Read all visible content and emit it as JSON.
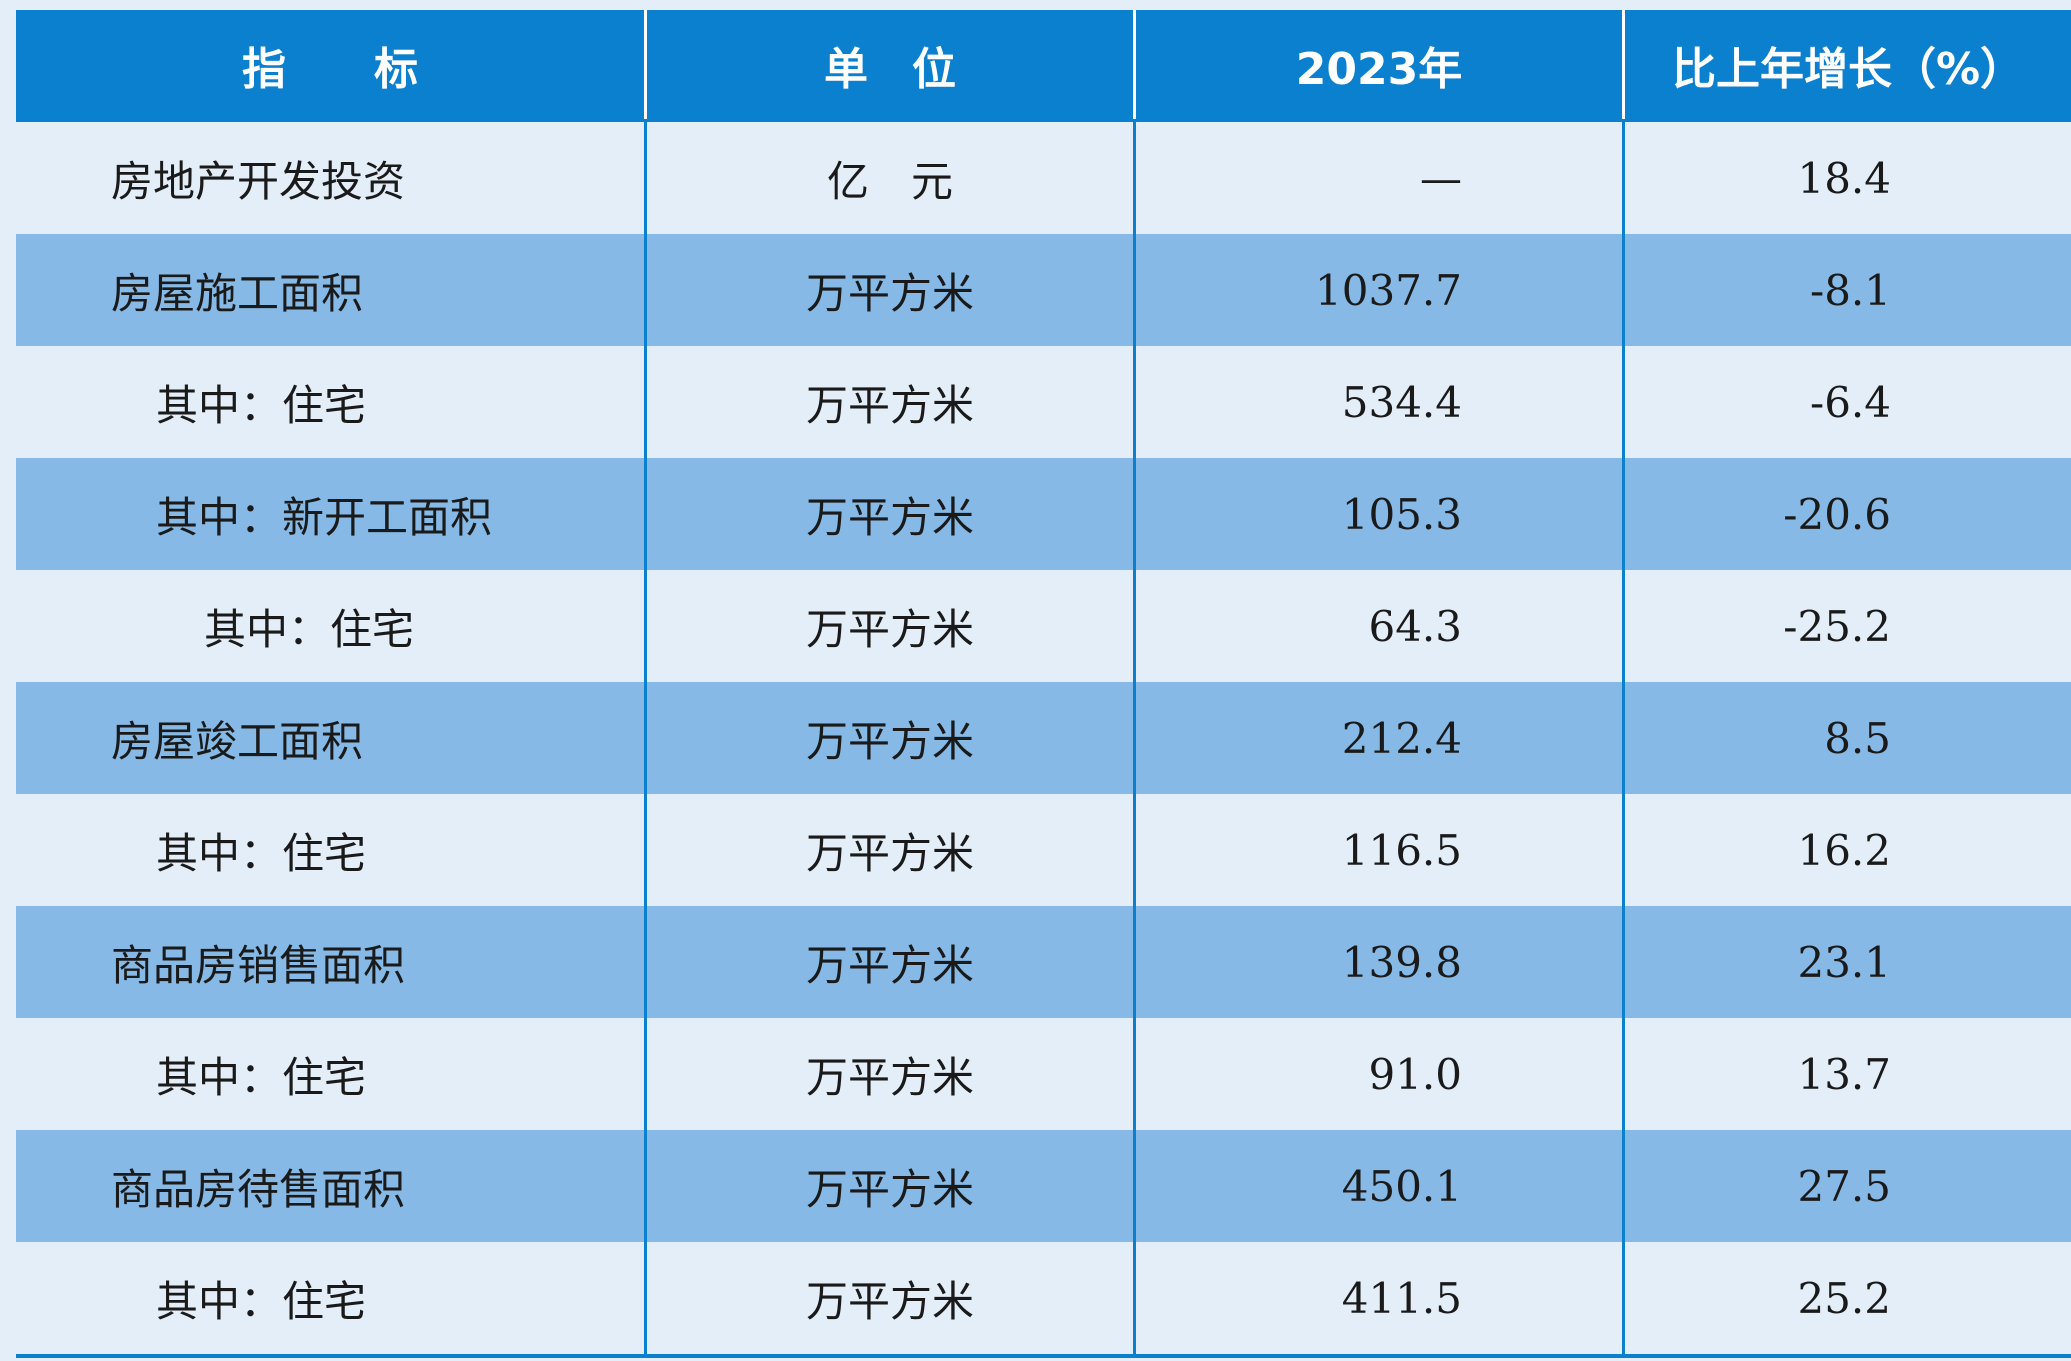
{
  "table": {
    "headers": [
      "指　　标",
      "单　位",
      "2023年",
      "比上年增长（%）"
    ],
    "rows": [
      {
        "indicator": "房地产开发投资",
        "unit": "亿　元",
        "value_2023": "—",
        "growth": "18.4",
        "indent": 0
      },
      {
        "indicator": "房屋施工面积",
        "unit": "万平方米",
        "value_2023": "1037.7",
        "growth": "-8.1",
        "indent": 0
      },
      {
        "indicator": "其中：住宅",
        "unit": "万平方米",
        "value_2023": "534.4",
        "growth": "-6.4",
        "indent": 1
      },
      {
        "indicator": "其中：新开工面积",
        "unit": "万平方米",
        "value_2023": "105.3",
        "growth": "-20.6",
        "indent": 1
      },
      {
        "indicator": "其中：住宅",
        "unit": "万平方米",
        "value_2023": "64.3",
        "growth": "-25.2",
        "indent": 2
      },
      {
        "indicator": "房屋竣工面积",
        "unit": "万平方米",
        "value_2023": "212.4",
        "growth": "8.5",
        "indent": 0
      },
      {
        "indicator": "其中：住宅",
        "unit": "万平方米",
        "value_2023": "116.5",
        "growth": "16.2",
        "indent": 1
      },
      {
        "indicator": "商品房销售面积",
        "unit": "万平方米",
        "value_2023": "139.8",
        "growth": "23.1",
        "indent": 0
      },
      {
        "indicator": "其中：住宅",
        "unit": "万平方米",
        "value_2023": "91.0",
        "growth": "13.7",
        "indent": 1
      },
      {
        "indicator": "商品房待售面积",
        "unit": "万平方米",
        "value_2023": "450.1",
        "growth": "27.5",
        "indent": 0
      },
      {
        "indicator": "其中：住宅",
        "unit": "万平方米",
        "value_2023": "411.5",
        "growth": "25.2",
        "indent": 1
      }
    ]
  },
  "colors": {
    "header_bg": "#0b80cf",
    "shaded_row": "#86b9e6",
    "plain_row": "#e4eef8"
  }
}
